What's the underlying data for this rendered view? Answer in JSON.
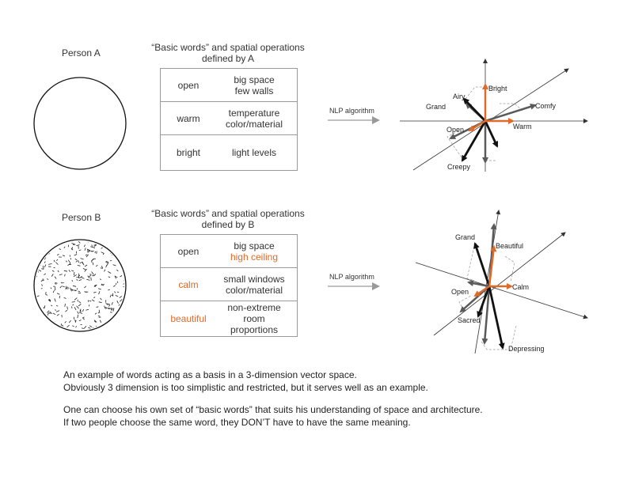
{
  "person_a": {
    "label": "Person A",
    "table_title_line1": "“Basic words” and spatial operations",
    "table_title_line2": "defined by A",
    "rows": [
      {
        "word": "open",
        "op1": "big space",
        "op2": "few walls"
      },
      {
        "word": "warm",
        "op1": "temperature",
        "op2": "color/material"
      },
      {
        "word": "bright",
        "op1": "light levels",
        "op2": ""
      }
    ],
    "nlp_label": "NLP algorithm",
    "vectors": {
      "bright": "Bright",
      "airy": "Airy",
      "grand": "Grand",
      "comfy": "Comfy",
      "open": "Open",
      "warm": "Warm",
      "creepy": "Creepy"
    }
  },
  "person_b": {
    "label": "Person B",
    "table_title_line1": "“Basic words” and spatial operations",
    "table_title_line2": "defined by B",
    "rows": [
      {
        "word": "open",
        "op1": "big space",
        "op2": "high ceiling"
      },
      {
        "word": "calm",
        "op1": "small windows",
        "op2": "color/material"
      },
      {
        "word": "beautiful",
        "op1": "non-extreme room",
        "op2": "proportions"
      }
    ],
    "nlp_label": "NLP algorithm",
    "vectors": {
      "grand": "Grand",
      "beautiful": "Beautiful",
      "calm": "Calm",
      "open": "Open",
      "sacred": "Sacred",
      "depressing": "Depressing"
    }
  },
  "caption": {
    "line1": "An example of words acting as a basis in a 3-dimension vector space.",
    "line2": "Obviously 3 dimension is too simplistic and restricted, but it serves well as an example.",
    "line3": "One can choose his own set of “basic words” that suits his understanding of space and architecture.",
    "line4": "If two people choose the same word, they DON’T have to have the same meaning."
  },
  "colors": {
    "accent": "#e06a2a",
    "black": "#111111",
    "gray": "#5a5a5a"
  }
}
